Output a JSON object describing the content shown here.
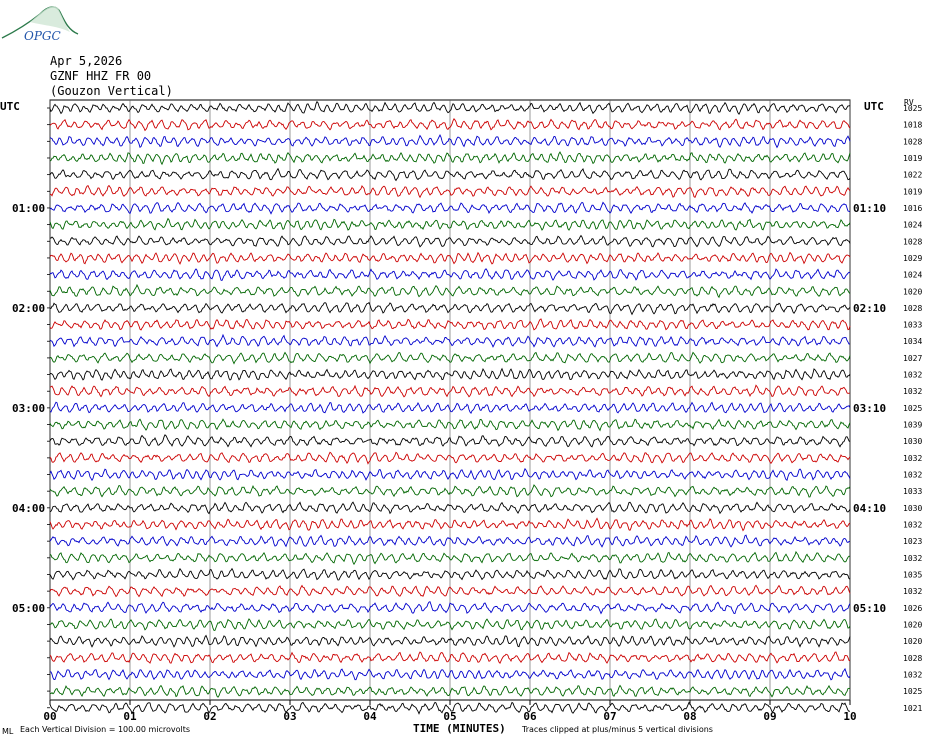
{
  "header": {
    "date": "Apr 5,2026",
    "station": "GZNF HHZ FR 00",
    "location": "(Gouzon Vertical)"
  },
  "logo": {
    "text": "OPGC",
    "color": "#2c7a4b"
  },
  "axis": {
    "left_title": "UTC",
    "right_title": "UTC",
    "rv_title": "RV",
    "xlabel": "TIME (MINUTES)",
    "footer_left": "Each Vertical Division =  100.00 microvolts",
    "footer_right": "Traces clipped at plus/minus 5 vertical divisions",
    "footer_mark": "ML"
  },
  "chart_data": {
    "type": "line",
    "title": "",
    "xlabel": "TIME (MINUTES)",
    "x_ticks": [
      "00",
      "01",
      "02",
      "03",
      "04",
      "05",
      "06",
      "07",
      "08",
      "09",
      "10"
    ],
    "xlim": [
      0,
      10
    ],
    "trace_colors": [
      "#000000",
      "#cc0000",
      "#0000cc",
      "#006600"
    ],
    "left_hour_labels": [
      {
        "row": 6,
        "text": "01:00"
      },
      {
        "row": 12,
        "text": "02:00"
      },
      {
        "row": 18,
        "text": "03:00"
      },
      {
        "row": 24,
        "text": "04:00"
      },
      {
        "row": 30,
        "text": "05:00"
      }
    ],
    "right_hour_labels": [
      {
        "row": 6,
        "text": "01:10"
      },
      {
        "row": 12,
        "text": "02:10"
      },
      {
        "row": 18,
        "text": "03:10"
      },
      {
        "row": 24,
        "text": "04:10"
      },
      {
        "row": 30,
        "text": "05:10"
      }
    ],
    "rv_values": [
      "1025",
      "1018",
      "1028",
      "1019",
      "1022",
      "1019",
      "1016",
      "1024",
      "1028",
      "1029",
      "1024",
      "1020",
      "1028",
      "1033",
      "1034",
      "1027",
      "1032",
      "1032",
      "1025",
      "1039",
      "1030",
      "1032",
      "1032",
      "1033",
      "1030",
      "1032",
      "1023",
      "1032",
      "1035",
      "1032",
      "1026",
      "1020",
      "1020",
      "1028",
      "1032",
      "1025",
      "1021"
    ]
  }
}
